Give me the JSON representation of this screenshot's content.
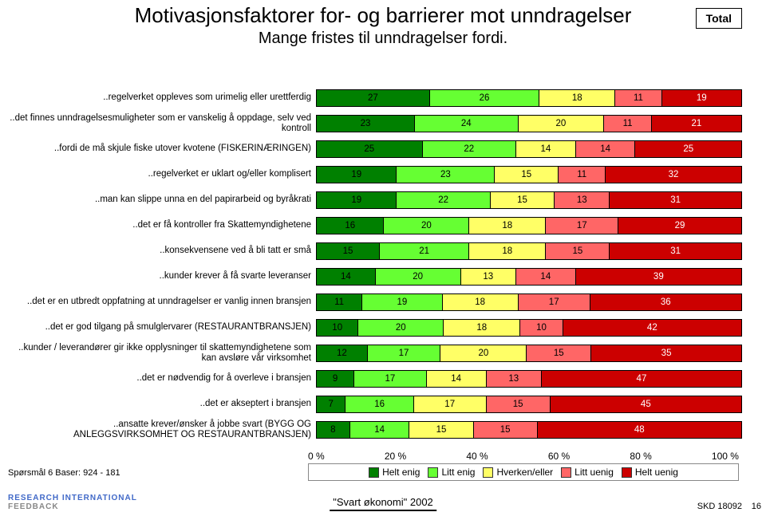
{
  "title_line1": "Motivasjonsfaktorer for- og barrierer mot unndragelser",
  "title_line2": "Mange fristes til unndragelser fordi.",
  "total_label": "Total",
  "chart": {
    "type": "bar-stacked-horizontal",
    "xlim": [
      0,
      100
    ],
    "xtick_step": 20,
    "xticks": [
      "0 %",
      "20 %",
      "40 %",
      "60 %",
      "80 %",
      "100 %"
    ],
    "colors": {
      "helt_enig": "#008000",
      "litt_enig": "#66ff33",
      "hverken": "#ffff66",
      "litt_uenig": "#ff6666",
      "helt_uenig": "#cc0000"
    },
    "legend": [
      {
        "label": "Helt enig",
        "key": "helt_enig"
      },
      {
        "label": "Litt enig",
        "key": "litt_enig"
      },
      {
        "label": "Hverken/eller",
        "key": "hverken"
      },
      {
        "label": "Litt uenig",
        "key": "litt_uenig"
      },
      {
        "label": "Helt uenig",
        "key": "helt_uenig"
      }
    ],
    "rows": [
      {
        "label": "..regelverket oppleves som urimelig eller urettferdig",
        "values": [
          27,
          26,
          18,
          11,
          19
        ]
      },
      {
        "label": "..det finnes unndragelsesmuligheter som er vanskelig å oppdage, selv ved kontroll",
        "values": [
          23,
          24,
          20,
          11,
          21
        ]
      },
      {
        "label": "..fordi de må skjule fiske utover kvotene  (FISKERINÆRINGEN)",
        "values": [
          25,
          22,
          14,
          14,
          25
        ]
      },
      {
        "label": "..regelverket er uklart og/eller komplisert",
        "values": [
          19,
          23,
          15,
          11,
          32
        ]
      },
      {
        "label": "..man kan slippe unna en del papirarbeid og byråkrati",
        "values": [
          19,
          22,
          15,
          13,
          31
        ]
      },
      {
        "label": "..det er få kontroller fra Skattemyndighetene",
        "values": [
          16,
          20,
          18,
          17,
          29
        ]
      },
      {
        "label": "..konsekvensene ved å bli tatt er små",
        "values": [
          15,
          21,
          18,
          15,
          31
        ]
      },
      {
        "label": "..kunder krever å få svarte leveranser",
        "values": [
          14,
          20,
          13,
          14,
          39
        ]
      },
      {
        "label": "..det er en utbredt oppfatning at unndragelser er vanlig innen bransjen",
        "values": [
          11,
          19,
          18,
          17,
          36
        ]
      },
      {
        "label": "..det er god tilgang på smulglervarer (RESTAURANTBRANSJEN)",
        "values": [
          10,
          20,
          18,
          10,
          42
        ]
      },
      {
        "label": "..kunder / leverandører gir ikke opplysninger til skattemyndighetene som kan avsløre vår virksomhet",
        "values": [
          12,
          17,
          20,
          15,
          35
        ]
      },
      {
        "label": "..det er nødvendig for å overleve i bransjen",
        "values": [
          9,
          17,
          14,
          13,
          47
        ]
      },
      {
        "label": "..det er akseptert i bransjen",
        "values": [
          7,
          16,
          17,
          15,
          45
        ]
      },
      {
        "label": "..ansatte krever/ønsker å jobbe svart (BYGG OG ANLEGGSVIRKSOMHET OG RESTAURANTBRANSJEN)",
        "values": [
          8,
          14,
          15,
          15,
          48
        ]
      }
    ]
  },
  "footer": {
    "source": "Spørsmål 6  Baser: 924 - 181",
    "brand1": "RESEARCH INTERNATIONAL",
    "brand2": "FEEDBACK",
    "mid": "\"Svart økonomi\" 2002",
    "right": "SKD 18092",
    "page": "16"
  }
}
